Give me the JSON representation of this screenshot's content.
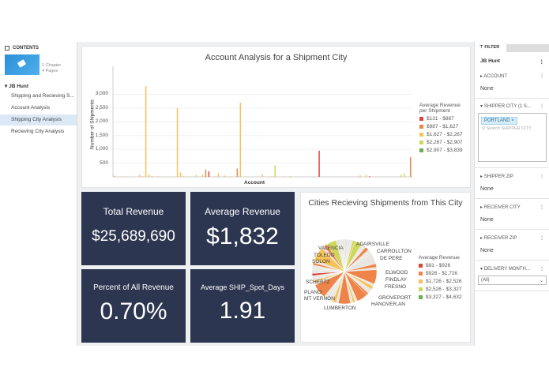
{
  "sidebar": {
    "header": "CONTENTS",
    "thumb_meta": [
      "1 Chapter",
      "4 Pages"
    ],
    "book": "JB Hunt",
    "items": [
      "Shipping and Recieving S...",
      "Account Analysis",
      "Shipping City Analysis",
      "Recieving City Analysis"
    ],
    "active": 2
  },
  "bar_chart": {
    "chart_data": {
      "type": "bar",
      "title": "Account Analysis for a Shipment City",
      "xlabel": "Account",
      "ylabel": "Number of Shipments",
      "ylim": [
        0,
        3300
      ],
      "yticks": [
        "3,000",
        "2,500",
        "2,000",
        "1,500",
        "1,000",
        "500"
      ],
      "ytick_values": [
        3000,
        2500,
        2000,
        1500,
        1000,
        500
      ],
      "legend_title": [
        "Average Revenue",
        "per Shipment"
      ],
      "legend": [
        {
          "label": "$131 - $987",
          "color": "#d9473a"
        },
        {
          "label": "$987 - $1,627",
          "color": "#ee8449"
        },
        {
          "label": "$1,627 - $2,267",
          "color": "#f5c35a"
        },
        {
          "label": "$2,267 - $2,907",
          "color": "#cfd65c"
        },
        {
          "label": "$2,907 - $3,839",
          "color": "#6aaf4a"
        }
      ],
      "values": [
        40,
        0,
        15,
        0,
        10,
        0,
        5,
        0,
        80,
        20,
        3300,
        90,
        30,
        0,
        20,
        0,
        15,
        0,
        10,
        0,
        2500,
        160,
        30,
        0,
        20,
        0,
        70,
        0,
        90,
        260,
        200,
        0,
        20,
        130,
        0,
        50,
        0,
        20,
        0,
        300,
        2700,
        0,
        0,
        0,
        0,
        0,
        0,
        90,
        0,
        0,
        20,
        420,
        0,
        0,
        20,
        0,
        30,
        0,
        0,
        0,
        0,
        0,
        0,
        0,
        0,
        950,
        0,
        10,
        0,
        0,
        0,
        0,
        0,
        0,
        0,
        0,
        0,
        0,
        60,
        0,
        70,
        20,
        0,
        0,
        0,
        10,
        0,
        0,
        0,
        0,
        0,
        70,
        120,
        0,
        720
      ],
      "color_bins": [
        2,
        2,
        3,
        2,
        2,
        2,
        2,
        2,
        2,
        2,
        2,
        2,
        2,
        2,
        2,
        2,
        2,
        2,
        2,
        2,
        2,
        2,
        2,
        2,
        2,
        2,
        2,
        2,
        3,
        1,
        0,
        2,
        2,
        2,
        2,
        2,
        2,
        2,
        2,
        1,
        2,
        2,
        2,
        2,
        2,
        2,
        2,
        2,
        2,
        2,
        2,
        3,
        2,
        2,
        2,
        2,
        2,
        2,
        2,
        2,
        2,
        2,
        2,
        2,
        2,
        0,
        0,
        2,
        2,
        2,
        2,
        2,
        2,
        2,
        2,
        2,
        2,
        2,
        2,
        2,
        2,
        0,
        2,
        2,
        2,
        2,
        2,
        2,
        2,
        2,
        2,
        3,
        3,
        2,
        1
      ]
    }
  },
  "kpis": [
    {
      "label": "Total Revenue",
      "value": "$25,689,690"
    },
    {
      "label": "Average Revenue",
      "value": "$1,832"
    },
    {
      "label": "Percent of All Revenue",
      "value": "0.70%"
    },
    {
      "label": "Average SHIP_Spot_Days",
      "value": "1.91"
    }
  ],
  "pie_chart": {
    "chart_data": {
      "type": "pie",
      "title": "Cities Recieving Shipments from This City",
      "labels": [
        "ADAIRSVILLE",
        "CARROLLTON",
        "DE PERE",
        "ELWOOD",
        "FINDLAY",
        "FRESNO",
        "GROVEPORT",
        "HANOVER,AN",
        "LUMBERTON",
        "MT VERNON",
        "PLANO",
        "SCHERTZ",
        "SOLON",
        "TOLEDO",
        "VALENCIA"
      ],
      "legend_title": "Average Revenue",
      "legend": [
        {
          "label": "$91 - $926",
          "color": "#d9473a"
        },
        {
          "label": "$926 - $1,726",
          "color": "#ee8449"
        },
        {
          "label": "$1,726 - $2,526",
          "color": "#f5c35a"
        },
        {
          "label": "$2,526 - $3,327",
          "color": "#cfd65c"
        },
        {
          "label": "$3,327 - $4,632",
          "color": "#6aaf4a"
        }
      ],
      "slices": [
        3,
        2,
        2,
        2,
        6,
        2,
        2,
        3,
        2,
        2,
        9,
        3,
        2,
        12,
        2,
        3,
        2,
        2,
        2,
        9,
        2,
        2,
        2,
        10,
        2,
        3,
        2,
        2,
        2,
        2,
        12,
        2,
        2,
        2,
        2,
        2,
        3,
        2,
        2,
        2,
        2,
        12,
        2,
        3,
        8,
        3,
        2,
        2
      ],
      "slice_bins": [
        5,
        5,
        5,
        3,
        3,
        5,
        5,
        1,
        5,
        5,
        5,
        1,
        5,
        1,
        5,
        2,
        5,
        5,
        1,
        1,
        5,
        2,
        5,
        1,
        5,
        2,
        5,
        5,
        5,
        5,
        1,
        5,
        2,
        5,
        5,
        0,
        5,
        5,
        5,
        1,
        5,
        2,
        5,
        1,
        3,
        5,
        5,
        5
      ]
    }
  },
  "filter": {
    "tab": "FILTER",
    "book": "JB Hunt",
    "sections": [
      {
        "label": "ACCOUNT",
        "value": "None"
      },
      {
        "label": "SHIPPER CITY (1 S...",
        "tag": "PORTLAND",
        "search_placeholder": "Search SHIPPER CITY"
      },
      {
        "label": "SHIPPER ZIP",
        "value": "None"
      },
      {
        "label": "RECEIVER CITY",
        "value": "None"
      },
      {
        "label": "RECEIVER ZIP",
        "value": "None"
      },
      {
        "label": "DELIVERY MONTH...",
        "select": "(All)"
      }
    ]
  }
}
